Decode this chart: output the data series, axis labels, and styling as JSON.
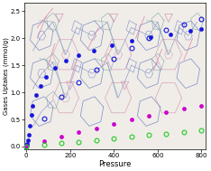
{
  "title": "",
  "xlabel": "Pressure",
  "ylabel": "Gases Uptakes (mmol/g)",
  "xlim": [
    -10,
    820
  ],
  "ylim": [
    -0.05,
    2.65
  ],
  "xticks": [
    0,
    200,
    400,
    600,
    800
  ],
  "yticks": [
    0.0,
    0.5,
    1.0,
    1.5,
    2.0,
    2.5
  ],
  "blue_filled": {
    "x": [
      0,
      3,
      6,
      10,
      15,
      22,
      30,
      45,
      65,
      90,
      130,
      180,
      240,
      310,
      390,
      480,
      570,
      660,
      750,
      800
    ],
    "y": [
      0.01,
      0.05,
      0.12,
      0.22,
      0.38,
      0.58,
      0.75,
      0.95,
      1.12,
      1.28,
      1.45,
      1.58,
      1.68,
      1.78,
      1.87,
      1.95,
      2.02,
      2.08,
      2.14,
      2.18
    ],
    "color": "#1515DD",
    "marker": "o",
    "markersize": 3.0,
    "fillstyle": "full"
  },
  "blue_open": {
    "x": [
      0,
      80,
      160,
      240,
      320,
      400,
      480,
      560,
      640,
      720,
      800
    ],
    "y": [
      0.02,
      0.52,
      0.92,
      1.18,
      1.42,
      1.62,
      1.82,
      2.0,
      2.15,
      2.25,
      2.35
    ],
    "color": "#1515DD",
    "marker": "o",
    "markersize": 3.5,
    "fillstyle": "none"
  },
  "magenta_filled": {
    "x": [
      0,
      80,
      160,
      240,
      320,
      400,
      480,
      560,
      640,
      720,
      800
    ],
    "y": [
      0.01,
      0.1,
      0.18,
      0.26,
      0.34,
      0.42,
      0.5,
      0.57,
      0.63,
      0.7,
      0.76
    ],
    "color": "#CC00CC",
    "marker": "o",
    "markersize": 3.0,
    "fillstyle": "full"
  },
  "green_open": {
    "x": [
      0,
      80,
      160,
      240,
      320,
      400,
      480,
      560,
      640,
      720,
      800
    ],
    "y": [
      0.0,
      0.03,
      0.06,
      0.09,
      0.12,
      0.15,
      0.18,
      0.21,
      0.24,
      0.27,
      0.3
    ],
    "color": "#22CC22",
    "marker": "o",
    "markersize": 3.5,
    "fillstyle": "none"
  },
  "bg_color": "#F0EDE8",
  "struct_blue": "#6678BB",
  "struct_pink": "#CC88AA",
  "struct_teal": "#88AAAA",
  "struct_gray": "#9999AA"
}
